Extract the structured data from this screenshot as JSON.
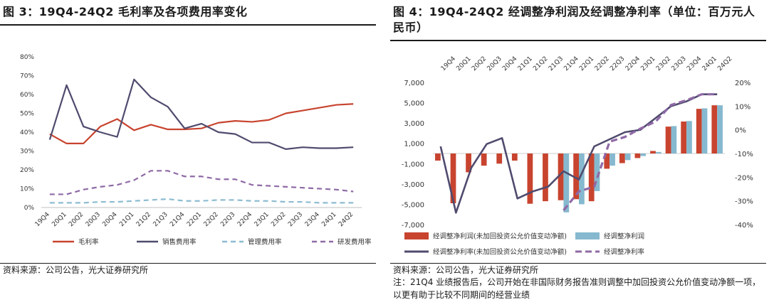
{
  "left_panel": {
    "title": "图 3：19Q4-24Q2 毛利率及各项费用率变化",
    "source": "资料来源：公司公告，光大证券研究所"
  },
  "right_panel": {
    "title": "图 4：19Q4-24Q2 经调整净利润及经调整净利率（单位：百万元人民币）",
    "source": "资料来源：公司公告，光大证券研究所",
    "note": "注：21Q4 业绩报告后，公司开始在非国际财务报告准则调整中加回投资公允价值变动净额一项，以更有助于比较不同期间的经营业绩"
  },
  "colors": {
    "red": "#C8442F",
    "navy": "#4F4B6E",
    "lightblue": "#8DBCD2",
    "purple": "#8F6AA6",
    "bar_blue": "#86B9CF"
  },
  "chart_data": [
    {
      "type": "line",
      "title": "19Q4-24Q2 毛利率及各项费用率变化",
      "x": [
        "19Q4",
        "20Q1",
        "20Q2",
        "20Q3",
        "20Q4",
        "21Q1",
        "21Q2",
        "21Q3",
        "21Q4",
        "22Q1",
        "22Q2",
        "22Q3",
        "22Q4",
        "23Q1",
        "23Q2",
        "23Q3",
        "23Q4",
        "24Q1",
        "24Q2"
      ],
      "ylim": [
        0,
        80
      ],
      "y_ticks": [
        "0%",
        "10%",
        "20%",
        "30%",
        "40%",
        "50%",
        "60%",
        "70%",
        "80%"
      ],
      "series": [
        {
          "name": "毛利率",
          "color": "#C8442F",
          "style": "solid",
          "values": [
            39,
            34,
            34,
            43,
            47,
            41,
            44,
            41.5,
            41.5,
            42,
            45,
            46,
            45.5,
            46.5,
            50,
            51.5,
            53,
            54.5,
            55
          ]
        },
        {
          "name": "销售费用率",
          "color": "#4F4B6E",
          "style": "solid",
          "values": [
            36,
            65,
            43,
            40,
            37.5,
            68,
            58.5,
            53.5,
            42,
            44.5,
            40,
            39,
            34.5,
            34.5,
            31,
            32,
            31.5,
            31.5,
            32
          ]
        },
        {
          "name": "管理费用率",
          "color": "#8DBCD2",
          "style": "dashed",
          "values": [
            2.5,
            2.5,
            2.5,
            3,
            3,
            3.5,
            4,
            4.5,
            3.5,
            3.5,
            4,
            4,
            3.5,
            3.5,
            3,
            3,
            2.5,
            2.5,
            2.5
          ]
        },
        {
          "name": "研发费用率",
          "color": "#8F6AA6",
          "style": "dashed",
          "values": [
            7,
            7,
            9.5,
            11,
            12,
            14.5,
            19.5,
            19.5,
            16.5,
            16.5,
            15,
            15,
            12,
            11.5,
            11,
            10.5,
            10,
            9.5,
            8.5
          ]
        }
      ]
    },
    {
      "type": "bar",
      "title": "19Q4-24Q2 经调整净利润及经调整净利率（单位：百万元人民币）",
      "categories": [
        "19Q4",
        "20Q1",
        "20Q2",
        "20Q3",
        "20Q4",
        "21Q1",
        "21Q2",
        "21Q3",
        "21Q4",
        "22Q1",
        "22Q2",
        "22Q3",
        "22Q4",
        "23Q1",
        "23Q2",
        "23Q3",
        "23Q4",
        "24Q1",
        "24Q2"
      ],
      "ylim": [
        -7000,
        7000
      ],
      "y_ticks": [
        "7,000",
        "5,000",
        "3,000",
        "1,000",
        "-1,000",
        "-3,000",
        "-5,000",
        "-7,000"
      ],
      "y2lim": [
        -40,
        20
      ],
      "y2_ticks": [
        "20%",
        "10%",
        "0%",
        "-10%",
        "-20%",
        "-30%",
        "-40%"
      ],
      "series": [
        {
          "name": "经调整净利润(未加回投资公允价值变动净额)",
          "kind": "bar",
          "color": "#C8442F",
          "values": [
            -700,
            -4900,
            -1850,
            -1200,
            -1000,
            -700,
            -4950,
            -4700,
            -4600,
            -4500,
            -4700,
            -1500,
            -950,
            -450,
            250,
            2650,
            3150,
            4400,
            4750
          ]
        },
        {
          "name": "经调整净利润",
          "kind": "bar",
          "color": "#86B9CF",
          "values": [
            null,
            null,
            null,
            null,
            null,
            null,
            null,
            null,
            -5800,
            -5000,
            -3700,
            -1200,
            -650,
            -250,
            150,
            2700,
            3200,
            4450,
            4750
          ]
        },
        {
          "name": "经调整净利率(未加回投资公允价值变动净额)",
          "kind": "line",
          "axis": "right",
          "color": "#4F4B6E",
          "style": "solid",
          "values": [
            -7,
            -35,
            -16,
            -6,
            -3.5,
            -29,
            -26,
            -24,
            -17.5,
            -21,
            -7,
            -4,
            -1,
            0,
            5,
            10,
            12,
            15,
            15
          ]
        },
        {
          "name": "经调整净利率",
          "kind": "line",
          "axis": "right",
          "color": "#8F6AA6",
          "style": "dashed",
          "values": [
            null,
            null,
            null,
            null,
            null,
            null,
            null,
            null,
            -34,
            -26,
            -24,
            -5,
            -3,
            0.5,
            3.5,
            10.5,
            12.5,
            15,
            15
          ]
        }
      ]
    }
  ]
}
